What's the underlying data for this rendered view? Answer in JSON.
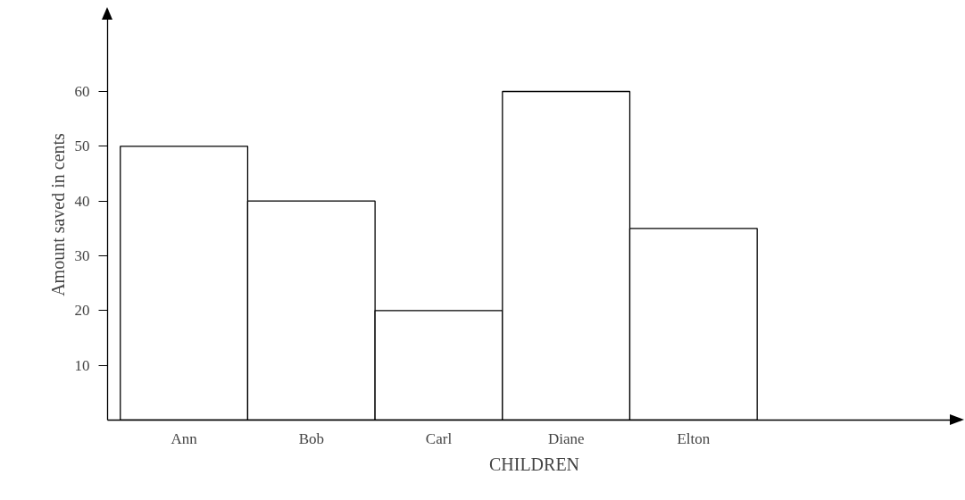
{
  "chart_data": {
    "type": "bar",
    "xlabel": "CHILDREN",
    "ylabel": "Amount saved in cents",
    "categories": [
      "Ann",
      "Bob",
      "Carl",
      "Diane",
      "Elton"
    ],
    "values": [
      50,
      40,
      20,
      60,
      35
    ],
    "color": "#ffffff",
    "ylim": [
      0,
      75
    ],
    "yticks": [
      10,
      20,
      30,
      40,
      50,
      60
    ],
    "grid": false
  }
}
